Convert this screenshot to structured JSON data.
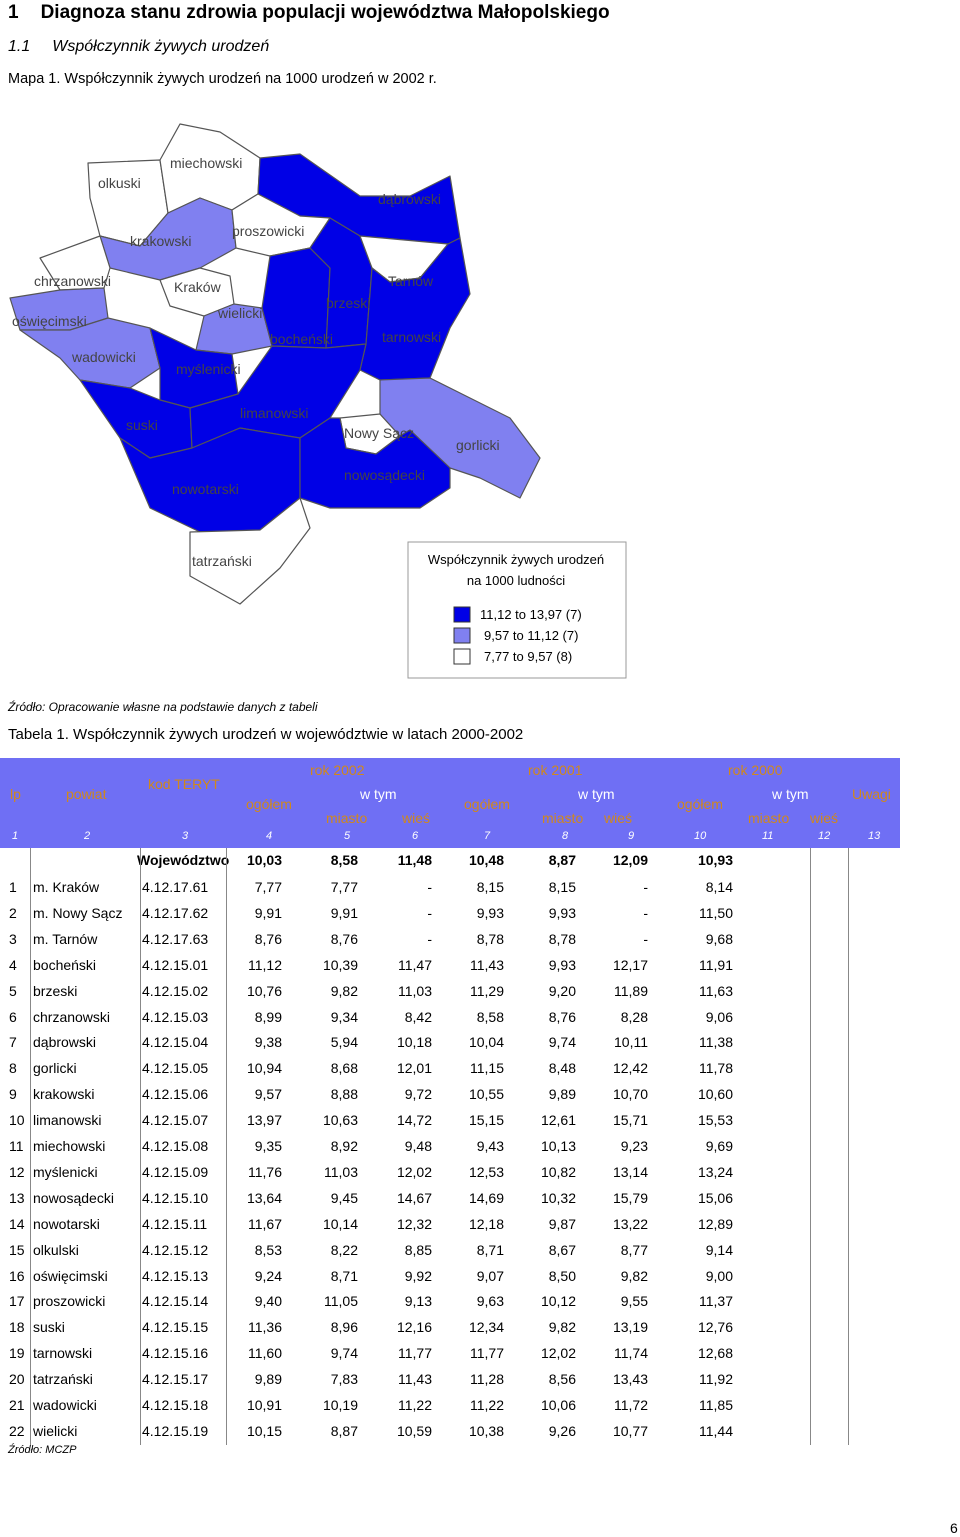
{
  "heading": {
    "number": "1",
    "title": "Diagnoza stanu zdrowia populacji województwa Małopolskiego"
  },
  "subheading": {
    "number": "1.1",
    "title": "Współczynnik żywych urodzeń"
  },
  "map_caption": "Mapa 1. Współczynnik żywych urodzeń na 1000 urodzeń w 2002 r.",
  "map": {
    "labels": [
      "olkuski",
      "miechowski",
      "dąbrowski",
      "krakowski",
      "proszowicki",
      "chrzanowski",
      "Kraków",
      "Tarnów",
      "brzeski",
      "oświęcimski",
      "wielicki",
      "bocheński",
      "tarnowski",
      "wadowicki",
      "myślenicki",
      "suski",
      "limanowski",
      "Nowy Sącz",
      "gorlicki",
      "nowotarski",
      "nowosądecki",
      "tatrzański"
    ],
    "legend_title_1": "Współczynnik żywych urodzeń",
    "legend_title_2": "na 1000 ludności",
    "legend": [
      {
        "text": "11,12 to 13,97   (7)",
        "color": "#0000e6"
      },
      {
        "text": "9,57 to 11,12   (7)",
        "color": "#8080f0"
      },
      {
        "text": "7,77 to   9,57   (8)",
        "color": "#ffffff"
      }
    ],
    "colors": {
      "dark": "#0000e6",
      "medium": "#8080f0",
      "light": "#ffffff"
    }
  },
  "map_source": "Źródło: Opracowanie własne na podstawie danych z tabeli",
  "table_caption": "Tabela 1. Współczynnik żywych urodzeń w województwie w latach 2000-2002",
  "table": {
    "header": {
      "lp": "lp",
      "powiat": "powiat",
      "kod": "kod TERYT",
      "rok2002": "rok 2002",
      "rok2001": "rok 2001",
      "rok2000": "rok 2000",
      "ogolem": "ogółem",
      "wtym": "w tym",
      "miasto": "miasto",
      "wies": "wieś",
      "uwagi": "Uwagi",
      "colnums": [
        "1",
        "2",
        "3",
        "4",
        "5",
        "6",
        "7",
        "8",
        "9",
        "10",
        "11",
        "12",
        "13"
      ]
    },
    "total": {
      "label": "Województwo",
      "values": [
        "10,03",
        "8,58",
        "11,48",
        "10,48",
        "8,87",
        "12,09",
        "10,93"
      ]
    },
    "rows": [
      {
        "lp": "1",
        "powiat": "m. Kraków",
        "kod": "4.12.17.61",
        "v": [
          "7,77",
          "7,77",
          "-",
          "8,15",
          "8,15",
          "-",
          "8,14"
        ]
      },
      {
        "lp": "2",
        "powiat": "m. Nowy Sącz",
        "kod": "4.12.17.62",
        "v": [
          "9,91",
          "9,91",
          "-",
          "9,93",
          "9,93",
          "-",
          "11,50"
        ]
      },
      {
        "lp": "3",
        "powiat": "m. Tarnów",
        "kod": "4.12.17.63",
        "v": [
          "8,76",
          "8,76",
          "-",
          "8,78",
          "8,78",
          "-",
          "9,68"
        ]
      },
      {
        "lp": "4",
        "powiat": "bocheński",
        "kod": "4.12.15.01",
        "v": [
          "11,12",
          "10,39",
          "11,47",
          "11,43",
          "9,93",
          "12,17",
          "11,91"
        ]
      },
      {
        "lp": "5",
        "powiat": "brzeski",
        "kod": "4.12.15.02",
        "v": [
          "10,76",
          "9,82",
          "11,03",
          "11,29",
          "9,20",
          "11,89",
          "11,63"
        ]
      },
      {
        "lp": "6",
        "powiat": "chrzanowski",
        "kod": "4.12.15.03",
        "v": [
          "8,99",
          "9,34",
          "8,42",
          "8,58",
          "8,76",
          "8,28",
          "9,06"
        ]
      },
      {
        "lp": "7",
        "powiat": "dąbrowski",
        "kod": "4.12.15.04",
        "v": [
          "9,38",
          "5,94",
          "10,18",
          "10,04",
          "9,74",
          "10,11",
          "11,38"
        ]
      },
      {
        "lp": "8",
        "powiat": "gorlicki",
        "kod": "4.12.15.05",
        "v": [
          "10,94",
          "8,68",
          "12,01",
          "11,15",
          "8,48",
          "12,42",
          "11,78"
        ]
      },
      {
        "lp": "9",
        "powiat": "krakowski",
        "kod": "4.12.15.06",
        "v": [
          "9,57",
          "8,88",
          "9,72",
          "10,55",
          "9,89",
          "10,70",
          "10,60"
        ]
      },
      {
        "lp": "10",
        "powiat": "limanowski",
        "kod": "4.12.15.07",
        "v": [
          "13,97",
          "10,63",
          "14,72",
          "15,15",
          "12,61",
          "15,71",
          "15,53"
        ]
      },
      {
        "lp": "11",
        "powiat": "miechowski",
        "kod": "4.12.15.08",
        "v": [
          "9,35",
          "8,92",
          "9,48",
          "9,43",
          "10,13",
          "9,23",
          "9,69"
        ]
      },
      {
        "lp": "12",
        "powiat": "myślenicki",
        "kod": "4.12.15.09",
        "v": [
          "11,76",
          "11,03",
          "12,02",
          "12,53",
          "10,82",
          "13,14",
          "13,24"
        ]
      },
      {
        "lp": "13",
        "powiat": "nowosądecki",
        "kod": "4.12.15.10",
        "v": [
          "13,64",
          "9,45",
          "14,67",
          "14,69",
          "10,32",
          "15,79",
          "15,06"
        ]
      },
      {
        "lp": "14",
        "powiat": "nowotarski",
        "kod": "4.12.15.11",
        "v": [
          "11,67",
          "10,14",
          "12,32",
          "12,18",
          "9,87",
          "13,22",
          "12,89"
        ]
      },
      {
        "lp": "15",
        "powiat": "olkulski",
        "kod": "4.12.15.12",
        "v": [
          "8,53",
          "8,22",
          "8,85",
          "8,71",
          "8,67",
          "8,77",
          "9,14"
        ]
      },
      {
        "lp": "16",
        "powiat": "oświęcimski",
        "kod": "4.12.15.13",
        "v": [
          "9,24",
          "8,71",
          "9,92",
          "9,07",
          "8,50",
          "9,82",
          "9,00"
        ]
      },
      {
        "lp": "17",
        "powiat": "proszowicki",
        "kod": "4.12.15.14",
        "v": [
          "9,40",
          "11,05",
          "9,13",
          "9,63",
          "10,12",
          "9,55",
          "11,37"
        ]
      },
      {
        "lp": "18",
        "powiat": "suski",
        "kod": "4.12.15.15",
        "v": [
          "11,36",
          "8,96",
          "12,16",
          "12,34",
          "9,82",
          "13,19",
          "12,76"
        ]
      },
      {
        "lp": "19",
        "powiat": "tarnowski",
        "kod": "4.12.15.16",
        "v": [
          "11,60",
          "9,74",
          "11,77",
          "11,77",
          "12,02",
          "11,74",
          "12,68"
        ]
      },
      {
        "lp": "20",
        "powiat": "tatrzański",
        "kod": "4.12.15.17",
        "v": [
          "9,89",
          "7,83",
          "11,43",
          "11,28",
          "8,56",
          "13,43",
          "11,92"
        ]
      },
      {
        "lp": "21",
        "powiat": "wadowicki",
        "kod": "4.12.15.18",
        "v": [
          "10,91",
          "10,19",
          "11,22",
          "11,22",
          "10,06",
          "11,72",
          "11,85"
        ]
      },
      {
        "lp": "22",
        "powiat": "wielicki",
        "kod": "4.12.15.19",
        "v": [
          "10,15",
          "8,87",
          "10,59",
          "10,38",
          "9,26",
          "10,77",
          "11,44"
        ]
      }
    ]
  },
  "table_source": "Źródło: MCZP",
  "page_number": "6"
}
